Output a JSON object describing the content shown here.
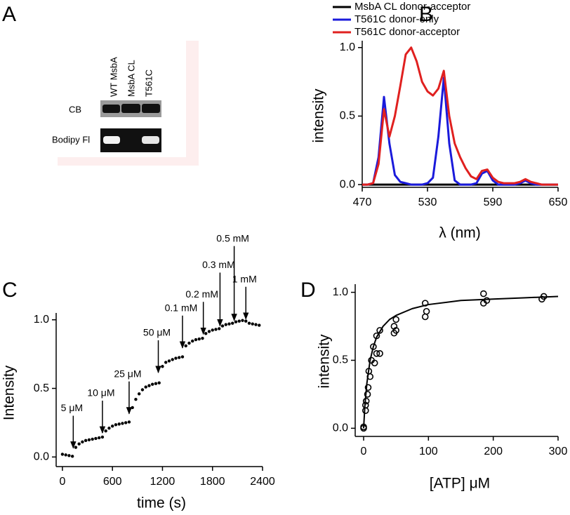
{
  "gel": {
    "panel_label": "A",
    "lanes": [
      "WT MsbA",
      "MsbA CL",
      "T561C"
    ],
    "rows": [
      "CB",
      "Bodipy Fl"
    ]
  },
  "chart_data": [
    {
      "panel_label": "B",
      "type": "line",
      "xlabel": "λ (nm)",
      "ylabel": "intensity",
      "legend": "top",
      "x": [
        470,
        475,
        480,
        485,
        490,
        495,
        500,
        505,
        510,
        515,
        520,
        525,
        530,
        535,
        540,
        545,
        550,
        555,
        560,
        565,
        570,
        575,
        580,
        585,
        590,
        595,
        600,
        605,
        610,
        615,
        620,
        625,
        630,
        635,
        640,
        645,
        650
      ],
      "series": [
        {
          "name": "MsbA CL donor-acceptor",
          "color": "#000000",
          "values": [
            0,
            0,
            0,
            0,
            0,
            0,
            0,
            0,
            0,
            0,
            0,
            0,
            0,
            0,
            0,
            0,
            0,
            0,
            0,
            0,
            0,
            0,
            0,
            0,
            0,
            0,
            0,
            0,
            0,
            0,
            0,
            0,
            0,
            0,
            0,
            0,
            0
          ]
        },
        {
          "name": "T561C donor-only",
          "color": "#1a1adb",
          "values": [
            0,
            0,
            0.01,
            0.2,
            0.64,
            0.3,
            0.07,
            0.02,
            0.01,
            0,
            0,
            0,
            0.01,
            0.05,
            0.35,
            0.78,
            0.3,
            0.03,
            0,
            0,
            0,
            0.01,
            0.08,
            0.1,
            0.03,
            0,
            0,
            0,
            0,
            0.01,
            0.03,
            0.01,
            0,
            0,
            0,
            0,
            0
          ]
        },
        {
          "name": "T561C donor-acceptor",
          "color": "#e0201f",
          "values": [
            0,
            0,
            0.01,
            0.15,
            0.55,
            0.35,
            0.5,
            0.72,
            0.95,
            1.0,
            0.9,
            0.75,
            0.68,
            0.65,
            0.7,
            0.83,
            0.5,
            0.3,
            0.2,
            0.12,
            0.06,
            0.04,
            0.1,
            0.11,
            0.05,
            0.02,
            0.01,
            0.01,
            0.01,
            0.02,
            0.04,
            0.02,
            0.01,
            0,
            0,
            0,
            0
          ]
        }
      ],
      "xlim": [
        470,
        650
      ],
      "xticks": [
        470,
        530,
        590,
        650
      ],
      "ylim": [
        -0.02,
        1.05
      ],
      "yticks": [
        {
          "value": 0,
          "label": "0.0"
        },
        0.5,
        {
          "value": 1,
          "label": "1.0"
        }
      ]
    },
    {
      "panel_label": "C",
      "type": "scatter",
      "xlabel": "time (s)",
      "ylabel": "Intensity",
      "x": [
        0,
        40,
        80,
        120,
        160,
        200,
        240,
        280,
        320,
        360,
        400,
        440,
        480,
        520,
        560,
        600,
        640,
        680,
        720,
        760,
        800,
        840,
        880,
        920,
        960,
        1000,
        1040,
        1080,
        1120,
        1160,
        1200,
        1240,
        1280,
        1320,
        1360,
        1400,
        1440,
        1480,
        1520,
        1560,
        1600,
        1640,
        1680,
        1720,
        1760,
        1800,
        1840,
        1880,
        1920,
        1960,
        2000,
        2040,
        2080,
        2120,
        2160,
        2200,
        2240,
        2280,
        2320,
        2360
      ],
      "series": [
        {
          "mode": "markers",
          "color": "#000000",
          "values": [
            0.02,
            0.015,
            0.01,
            0.005,
            0.07,
            0.095,
            0.11,
            0.12,
            0.125,
            0.13,
            0.135,
            0.14,
            0.145,
            0.19,
            0.21,
            0.225,
            0.235,
            0.24,
            0.245,
            0.25,
            0.255,
            0.36,
            0.42,
            0.46,
            0.49,
            0.51,
            0.52,
            0.53,
            0.535,
            0.54,
            0.66,
            0.69,
            0.7,
            0.71,
            0.72,
            0.725,
            0.73,
            0.81,
            0.83,
            0.845,
            0.855,
            0.86,
            0.865,
            0.9,
            0.915,
            0.925,
            0.93,
            0.935,
            0.955,
            0.965,
            0.97,
            0.975,
            0.985,
            0.99,
            0.995,
            0.99,
            0.975,
            0.97,
            0.965,
            0.96
          ]
        }
      ],
      "annotations": [
        {
          "text": "5 μM",
          "x": 130,
          "y": 0.05
        },
        {
          "text": "10 μM",
          "x": 480,
          "y": 0.16
        },
        {
          "text": "25 μM",
          "x": 800,
          "y": 0.3
        },
        {
          "text": "50 μM",
          "x": 1150,
          "y": 0.6
        },
        {
          "text": "0.1 mM",
          "x": 1440,
          "y": 0.78
        },
        {
          "text": "0.2 mM",
          "x": 1690,
          "y": 0.88
        },
        {
          "text": "0.3 mM",
          "x": 1890,
          "y": 0.94
        },
        {
          "text": "0.5 mM",
          "x": 2060,
          "y": 0.98
        },
        {
          "text": "1 mM",
          "x": 2200,
          "y": 0.99
        }
      ],
      "xlim": [
        -75,
        2400
      ],
      "xticks": [
        0,
        600,
        1200,
        1800,
        2400
      ],
      "ylim": [
        -0.07,
        1.05
      ],
      "yticks": [
        {
          "value": 0,
          "label": "0.0"
        },
        0.5,
        {
          "value": 1,
          "label": "1.0"
        }
      ]
    },
    {
      "panel_label": "D",
      "type": "scatter",
      "xlabel": "[ATP] μM",
      "ylabel": "intensity",
      "series": [
        {
          "mode": "markers",
          "color": "#000000",
          "x": [
            0,
            0,
            3,
            3,
            4,
            6,
            7,
            8,
            10,
            12,
            15,
            17,
            20,
            20,
            25,
            25,
            47,
            47,
            50,
            50,
            95,
            95,
            97,
            185,
            185,
            190,
            275,
            278
          ],
          "values": [
            0,
            0.01,
            0.13,
            0.17,
            0.2,
            0.25,
            0.3,
            0.42,
            0.38,
            0.5,
            0.6,
            0.48,
            0.68,
            0.55,
            0.72,
            0.55,
            0.7,
            0.75,
            0.8,
            0.72,
            0.92,
            0.82,
            0.86,
            0.99,
            0.92,
            0.94,
            0.95,
            0.97
          ]
        },
        {
          "mode": "line",
          "color": "#000000",
          "x": [
            0,
            2,
            5,
            10,
            15,
            20,
            30,
            40,
            50,
            75,
            100,
            150,
            200,
            250,
            300
          ],
          "values": [
            0,
            0.17,
            0.33,
            0.5,
            0.6,
            0.67,
            0.75,
            0.8,
            0.83,
            0.88,
            0.91,
            0.94,
            0.95,
            0.96,
            0.97
          ]
        }
      ],
      "xlim": [
        -13,
        300
      ],
      "xticks": [
        0,
        100,
        200,
        300
      ],
      "ylim": [
        -0.06,
        1.06
      ],
      "yticks": [
        {
          "value": 0,
          "label": "0.0"
        },
        0.5,
        {
          "value": 1,
          "label": "1.0"
        }
      ]
    }
  ]
}
